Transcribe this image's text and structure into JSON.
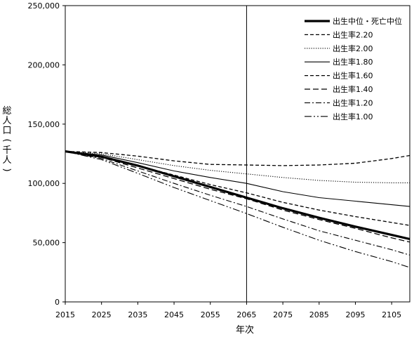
{
  "chart_data": {
    "type": "line",
    "xlabel": "年次",
    "ylabel": "総人口(千人)",
    "xlim": [
      2015,
      2110
    ],
    "ylim": [
      0,
      250000
    ],
    "x_ticks": [
      "2015",
      "2025",
      "2035",
      "2045",
      "2055",
      "2065",
      "2075",
      "2085",
      "2095",
      "2105"
    ],
    "y_ticks": [
      "0",
      "50,000",
      "100,000",
      "150,000",
      "200,000",
      "250,000"
    ],
    "reference_line_x": 2065,
    "legend_position": "top-right",
    "x": [
      2015,
      2025,
      2035,
      2045,
      2055,
      2065,
      2075,
      2085,
      2095,
      2105,
      2110
    ],
    "series": [
      {
        "name": "出生中位・死亡中位",
        "style": "bold-solid",
        "values": [
          127000,
          122500,
          115000,
          106000,
          97000,
          88000,
          79000,
          71000,
          63500,
          56500,
          53000
        ]
      },
      {
        "name": "出生率2.20",
        "style": "dash",
        "values": [
          127000,
          126000,
          123000,
          119000,
          116000,
          115500,
          115000,
          115500,
          117000,
          121000,
          123500
        ]
      },
      {
        "name": "出生率2.00",
        "style": "dot",
        "values": [
          127000,
          125000,
          120000,
          115000,
          111000,
          108000,
          105000,
          102500,
          101000,
          100500,
          100500
        ]
      },
      {
        "name": "出生率1.80",
        "style": "solid",
        "values": [
          127000,
          124000,
          117500,
          110500,
          105000,
          100000,
          93000,
          88000,
          85000,
          82000,
          80500
        ]
      },
      {
        "name": "出生率1.60",
        "style": "dash",
        "values": [
          127000,
          123000,
          115000,
          107000,
          99000,
          92000,
          84000,
          77500,
          72000,
          67000,
          64500
        ]
      },
      {
        "name": "出生率1.40",
        "style": "long-dash",
        "values": [
          127000,
          122000,
          113000,
          104000,
          95000,
          87000,
          77500,
          69500,
          62000,
          54000,
          50500
        ]
      },
      {
        "name": "出生率1.20",
        "style": "dash-dot",
        "values": [
          127000,
          121000,
          110500,
          100000,
          90000,
          80500,
          70000,
          60000,
          52000,
          44000,
          39500
        ]
      },
      {
        "name": "出生率1.00",
        "style": "dash-dot-dot",
        "values": [
          127000,
          120000,
          108500,
          96500,
          85500,
          74500,
          63000,
          52000,
          42500,
          34000,
          29000
        ]
      }
    ]
  }
}
